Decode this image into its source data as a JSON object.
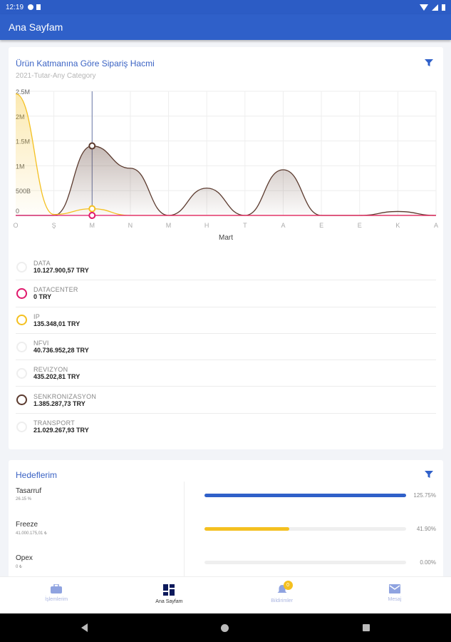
{
  "status_bar": {
    "time": "12:19"
  },
  "app_bar": {
    "title": "Ana Sayfam"
  },
  "order_card": {
    "title": "Ürün Katmanına Göre Sipariş Hacmi",
    "subtitle": "2021-Tutar-Any Category",
    "filter_icon": "filter-icon"
  },
  "chart_data": {
    "type": "area",
    "title": "Ürün Katmanına Göre Sipariş Hacmi",
    "xlabel": "Mart",
    "ylabel": "",
    "categories": [
      "O",
      "Ş",
      "M",
      "N",
      "M",
      "H",
      "T",
      "A",
      "E",
      "E",
      "K",
      "A"
    ],
    "ylim": [
      0,
      2500000
    ],
    "yticks": [
      {
        "v": 0,
        "label": "0"
      },
      {
        "v": 500000,
        "label": "500B"
      },
      {
        "v": 1000000,
        "label": "1M"
      },
      {
        "v": 1500000,
        "label": "1.5M"
      },
      {
        "v": 2000000,
        "label": "2M"
      },
      {
        "v": 2500000,
        "label": "2.5M"
      }
    ],
    "grid": true,
    "selected_index": 2,
    "series": [
      {
        "name": "SENKRONIZASYON",
        "color": "#5b3a2e",
        "values": [
          0,
          0,
          1400000,
          950000,
          0,
          550000,
          0,
          920000,
          0,
          0,
          80000,
          0
        ]
      },
      {
        "name": "IP",
        "color": "#f4c020",
        "values": [
          2450000,
          20000,
          135000,
          0,
          0,
          0,
          0,
          0,
          0,
          0,
          0,
          0
        ]
      },
      {
        "name": "DATACENTER",
        "color": "#e0186c",
        "values": [
          0,
          0,
          0,
          0,
          0,
          0,
          0,
          0,
          0,
          0,
          0,
          0
        ]
      }
    ]
  },
  "legend": [
    {
      "name": "DATA",
      "value": "10.127.900,57 TRY",
      "color": "#eeeeee"
    },
    {
      "name": "DATACENTER",
      "value": "0 TRY",
      "color": "#e0186c"
    },
    {
      "name": "IP",
      "value": "135.348,01 TRY",
      "color": "#f4c020"
    },
    {
      "name": "NFVI",
      "value": "40.736.952,28 TRY",
      "color": "#eeeeee"
    },
    {
      "name": "REVIZYON",
      "value": "435.202,81 TRY",
      "color": "#eeeeee"
    },
    {
      "name": "SENKRONIZASYON",
      "value": "1.385.287,73 TRY",
      "color": "#5b3a2e"
    },
    {
      "name": "TRANSPORT",
      "value": "21.029.267,93 TRY",
      "color": "#eeeeee"
    }
  ],
  "goals_card": {
    "title": "Hedeflerim",
    "goals": [
      {
        "name": "Tasarruf",
        "value": "26.15 %",
        "percent_label": "125.75%",
        "progress": 1.0,
        "color": "#2f60c9"
      },
      {
        "name": "Freeze",
        "value": "41.000.175,01 ₺",
        "percent_label": "41.90%",
        "progress": 0.419,
        "color": "#f4c020"
      },
      {
        "name": "Opex",
        "value": "0 ₺",
        "percent_label": "0.00%",
        "progress": 0,
        "color": "#2f60c9"
      }
    ]
  },
  "bottom_nav": {
    "items": [
      {
        "label": "İşlemlerim",
        "icon": "briefcase-icon"
      },
      {
        "label": "Ana Sayfam",
        "icon": "dashboard-icon"
      },
      {
        "label": "Bildirimler",
        "icon": "bell-icon",
        "badge": "0"
      },
      {
        "label": "Mesaj",
        "icon": "mail-icon"
      }
    ]
  }
}
